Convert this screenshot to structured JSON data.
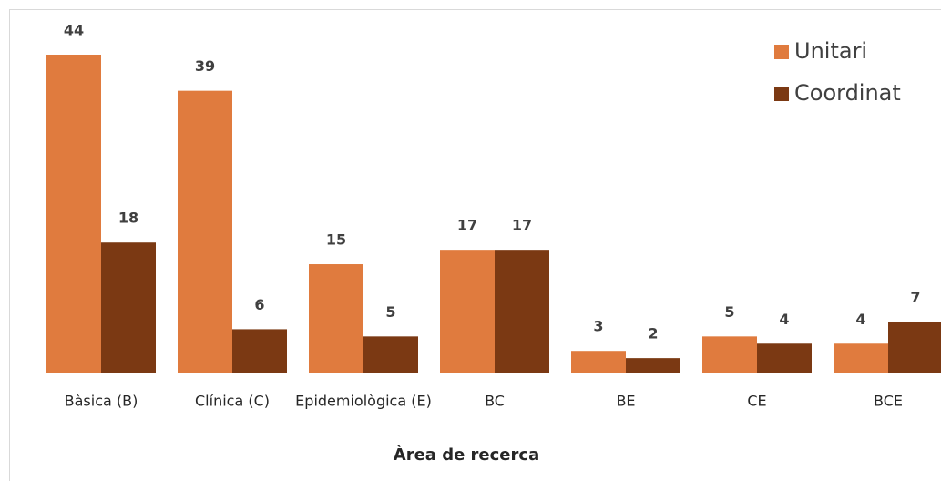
{
  "chart_data": {
    "type": "bar",
    "categories": [
      "Bàsica (B)",
      "Clínica (C)",
      "Epidemiològica (E)",
      "BC",
      "BE",
      "CE",
      "BCE"
    ],
    "series": [
      {
        "name": "Unitari",
        "color": "#e07b3e",
        "values": [
          44,
          39,
          15,
          17,
          3,
          5,
          4
        ]
      },
      {
        "name": "Coordinat",
        "color": "#7b3913",
        "values": [
          18,
          6,
          5,
          17,
          2,
          4,
          7
        ]
      }
    ],
    "x_label": "Àrea de recerca",
    "legend": "upper right"
  }
}
